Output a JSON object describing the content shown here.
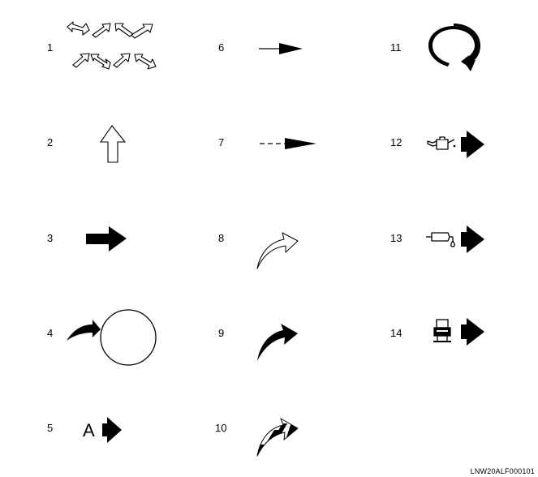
{
  "items": [
    {
      "number": "1",
      "icon": "four-way-diagonal-arrows-icon"
    },
    {
      "number": "2",
      "icon": "outline-up-arrow-icon"
    },
    {
      "number": "3",
      "icon": "solid-right-arrow-icon"
    },
    {
      "number": "4",
      "icon": "curved-arrow-to-circle-icon"
    },
    {
      "number": "5",
      "icon": "letter-a-right-arrow-icon",
      "letter": "A"
    },
    {
      "number": "6",
      "icon": "thin-right-arrow-icon"
    },
    {
      "number": "7",
      "icon": "dashed-right-arrow-icon"
    },
    {
      "number": "8",
      "icon": "outline-curved-arrow-icon"
    },
    {
      "number": "9",
      "icon": "solid-curved-arrow-icon"
    },
    {
      "number": "10",
      "icon": "striped-curved-arrow-icon"
    },
    {
      "number": "11",
      "icon": "rotation-arrow-icon"
    },
    {
      "number": "12",
      "icon": "oil-can-arrow-icon"
    },
    {
      "number": "13",
      "icon": "grease-dispenser-arrow-icon"
    },
    {
      "number": "14",
      "icon": "tool-press-arrow-icon"
    }
  ],
  "figure_code": "LNW20ALF000101"
}
